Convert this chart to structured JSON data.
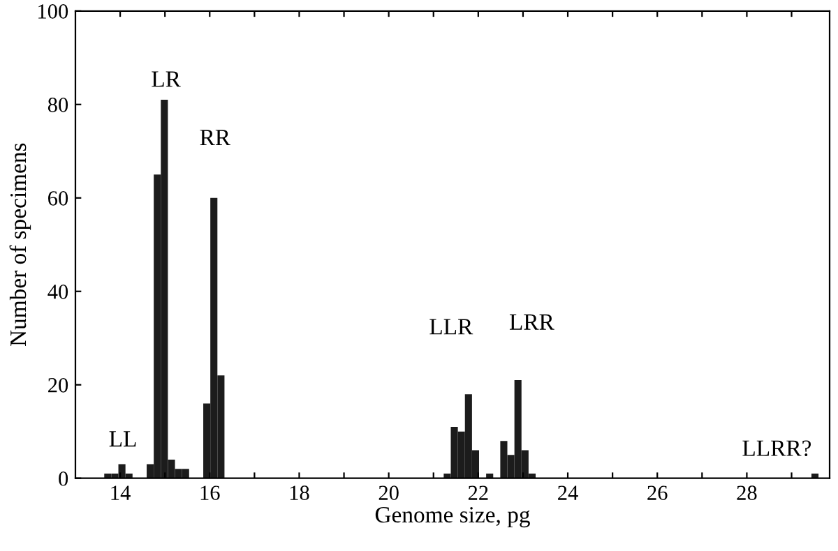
{
  "chart_data": {
    "type": "histogram",
    "xlabel": "Genome size, pg",
    "ylabel": "Number of specimens",
    "bins": [
      13.644,
      13.802,
      13.96,
      14.118,
      14.276,
      14.434,
      14.592,
      14.75,
      14.908,
      15.066,
      15.224,
      15.382,
      15.54,
      15.698,
      15.856,
      16.014,
      16.172,
      16.33,
      16.488,
      16.646,
      16.804,
      16.962,
      17.12,
      17.278,
      17.436,
      17.594,
      17.752,
      17.91,
      18.068,
      18.226,
      18.384,
      18.542,
      18.7,
      18.858,
      19.016,
      19.174,
      19.332,
      19.49,
      19.648,
      19.806,
      19.964,
      20.122,
      20.28,
      20.438,
      20.596,
      20.754,
      20.912,
      21.07,
      21.228,
      21.386,
      21.544,
      21.702,
      21.86,
      22.018,
      22.176,
      22.334,
      22.492,
      22.65,
      22.808,
      22.966,
      23.124,
      23.282,
      23.44,
      23.598,
      23.756,
      23.914,
      24.072,
      24.23,
      24.388,
      24.546,
      24.704,
      24.862,
      25.02,
      25.178,
      25.336,
      25.494,
      25.652,
      25.81,
      25.968,
      26.126,
      26.284,
      26.442,
      26.6,
      26.758,
      26.916,
      27.074,
      27.232,
      27.39,
      27.548,
      27.706,
      27.864,
      28.022,
      28.18,
      28.338,
      28.496,
      28.654,
      28.812,
      28.97,
      29.128,
      29.286,
      29.444,
      29.602
    ],
    "values": [
      1,
      1,
      3,
      1,
      0,
      0,
      3,
      65,
      81,
      4,
      2,
      2,
      0,
      0,
      16,
      60,
      22,
      0,
      0,
      0,
      0,
      0,
      0,
      0,
      0,
      0,
      0,
      0,
      0,
      0,
      0,
      0,
      0,
      0,
      0,
      0,
      0,
      0,
      0,
      0,
      0,
      0,
      0,
      0,
      0,
      0,
      0,
      0,
      1,
      11,
      10,
      18,
      6,
      0,
      1,
      0,
      8,
      5,
      21,
      6,
      1,
      0,
      0,
      0,
      0,
      0,
      0,
      0,
      0,
      0,
      0,
      0,
      0,
      0,
      0,
      0,
      0,
      0,
      0,
      0,
      0,
      0,
      0,
      0,
      0,
      0,
      0,
      0,
      0,
      0,
      0,
      0,
      0,
      0,
      0,
      0,
      0,
      0,
      0,
      0,
      1
    ],
    "color": "#1c1c1c",
    "xlim": [
      13,
      29.85
    ],
    "ylim": [
      0,
      100
    ],
    "xticks": [
      14,
      {
        "value": 15,
        "label": null
      },
      16,
      {
        "value": 17,
        "label": null
      },
      18,
      {
        "value": 19,
        "label": null
      },
      20,
      {
        "value": 21,
        "label": null
      },
      22,
      {
        "value": 23,
        "label": null
      },
      24,
      {
        "value": 25,
        "label": null
      },
      26,
      {
        "value": 27,
        "label": null
      },
      28,
      {
        "value": 29,
        "label": null
      }
    ],
    "yticks": [
      0,
      20,
      40,
      60,
      80,
      100
    ],
    "grid": false,
    "legend": false,
    "annotations": [
      "LL",
      "LR",
      "RR",
      "LLR",
      "LRR",
      "LLRR?"
    ]
  }
}
